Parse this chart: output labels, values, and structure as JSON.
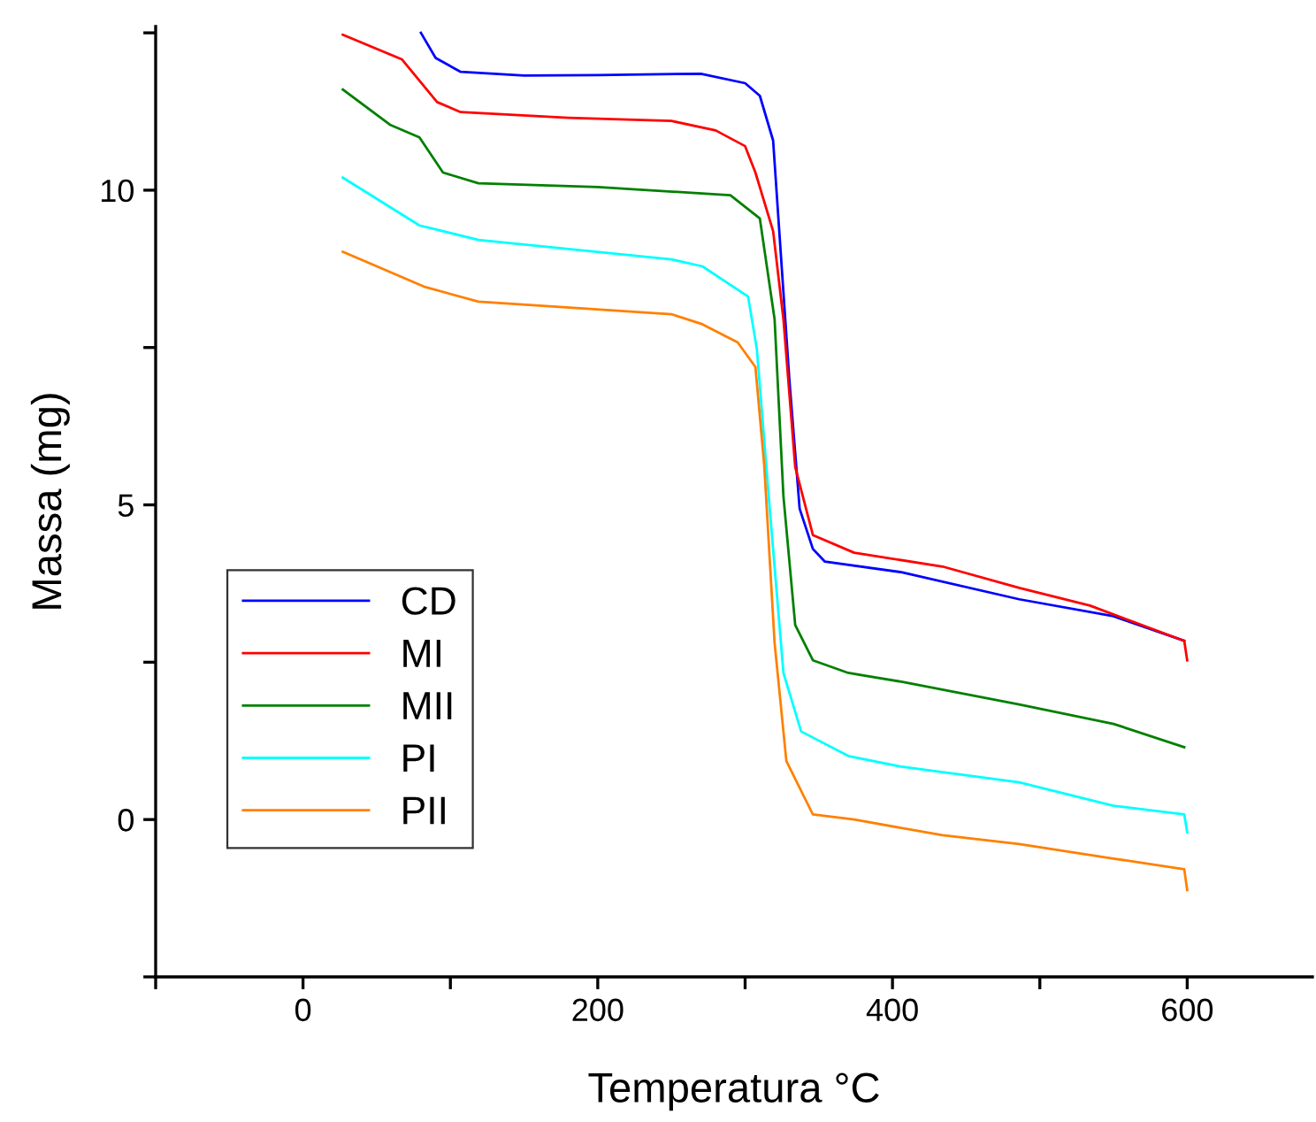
{
  "chart_data": {
    "type": "line",
    "xlabel": "Temperatura °C",
    "ylabel": "Massa (mg)",
    "xlim": [
      -100,
      685
    ],
    "ylim": [
      -2.5,
      12.6
    ],
    "xticks": [
      {
        "value": -100,
        "label": null
      },
      0,
      {
        "value": 100,
        "label": null
      },
      200,
      {
        "value": 300,
        "label": null
      },
      400,
      {
        "value": 500,
        "label": null
      },
      600
    ],
    "yticks": [
      {
        "value": -2.5,
        "label": null
      },
      0,
      {
        "value": 2.5,
        "label": null
      },
      5,
      {
        "value": 7.5,
        "label": null
      },
      10,
      {
        "value": 12.5,
        "label": null
      }
    ],
    "grid": false,
    "legend": "bottom left",
    "marker": "none",
    "line_style": "solid",
    "series": [
      {
        "name": "CD",
        "color": "#0000ff",
        "x": [
          80,
          90,
          107,
          150,
          200,
          270,
          300,
          310,
          319,
          330,
          337,
          346,
          354,
          406,
          486,
          550,
          598
        ],
        "values": [
          12.5,
          12.1,
          11.88,
          11.82,
          11.83,
          11.85,
          11.7,
          11.5,
          10.79,
          7.0,
          4.94,
          4.3,
          4.1,
          3.93,
          3.5,
          3.23,
          2.84
        ]
      },
      {
        "name": "MI",
        "color": "#ff0000",
        "x": [
          27,
          67,
          91,
          107,
          180,
          250,
          280,
          300,
          307,
          319,
          326,
          334,
          346,
          374,
          434,
          486,
          534,
          598,
          600
        ],
        "values": [
          12.47,
          12.08,
          11.4,
          11.24,
          11.15,
          11.1,
          10.95,
          10.7,
          10.28,
          9.35,
          7.95,
          5.6,
          4.52,
          4.24,
          4.02,
          3.68,
          3.4,
          2.84,
          2.53
        ]
      },
      {
        "name": "MII",
        "color": "#008000",
        "x": [
          27,
          59,
          79,
          95,
          119,
          200,
          290,
          310,
          320,
          326,
          334,
          346,
          370,
          406,
          486,
          550,
          598
        ],
        "values": [
          11.6,
          11.04,
          10.84,
          10.28,
          10.11,
          10.05,
          9.92,
          9.55,
          7.95,
          5.14,
          3.09,
          2.53,
          2.33,
          2.19,
          1.83,
          1.52,
          1.15
        ]
      },
      {
        "name": "PI",
        "color": "#00ffff",
        "x": [
          27,
          79,
          119,
          250,
          271,
          302,
          308,
          316,
          326,
          338,
          370,
          406,
          486,
          550,
          598,
          600
        ],
        "values": [
          10.2,
          9.44,
          9.21,
          8.9,
          8.79,
          8.31,
          7.47,
          5.14,
          2.33,
          1.4,
          1.01,
          0.84,
          0.59,
          0.22,
          0.08,
          -0.2
        ]
      },
      {
        "name": "PII",
        "color": "#ff8000",
        "x": [
          27,
          83,
          119,
          250,
          271,
          295,
          307,
          313,
          320,
          328,
          346,
          374,
          434,
          486,
          550,
          598,
          600
        ],
        "values": [
          9.02,
          8.46,
          8.23,
          8.03,
          7.87,
          7.58,
          7.19,
          5.62,
          2.81,
          0.93,
          0.08,
          0.0,
          -0.25,
          -0.39,
          -0.62,
          -0.79,
          -1.12
        ]
      }
    ]
  }
}
